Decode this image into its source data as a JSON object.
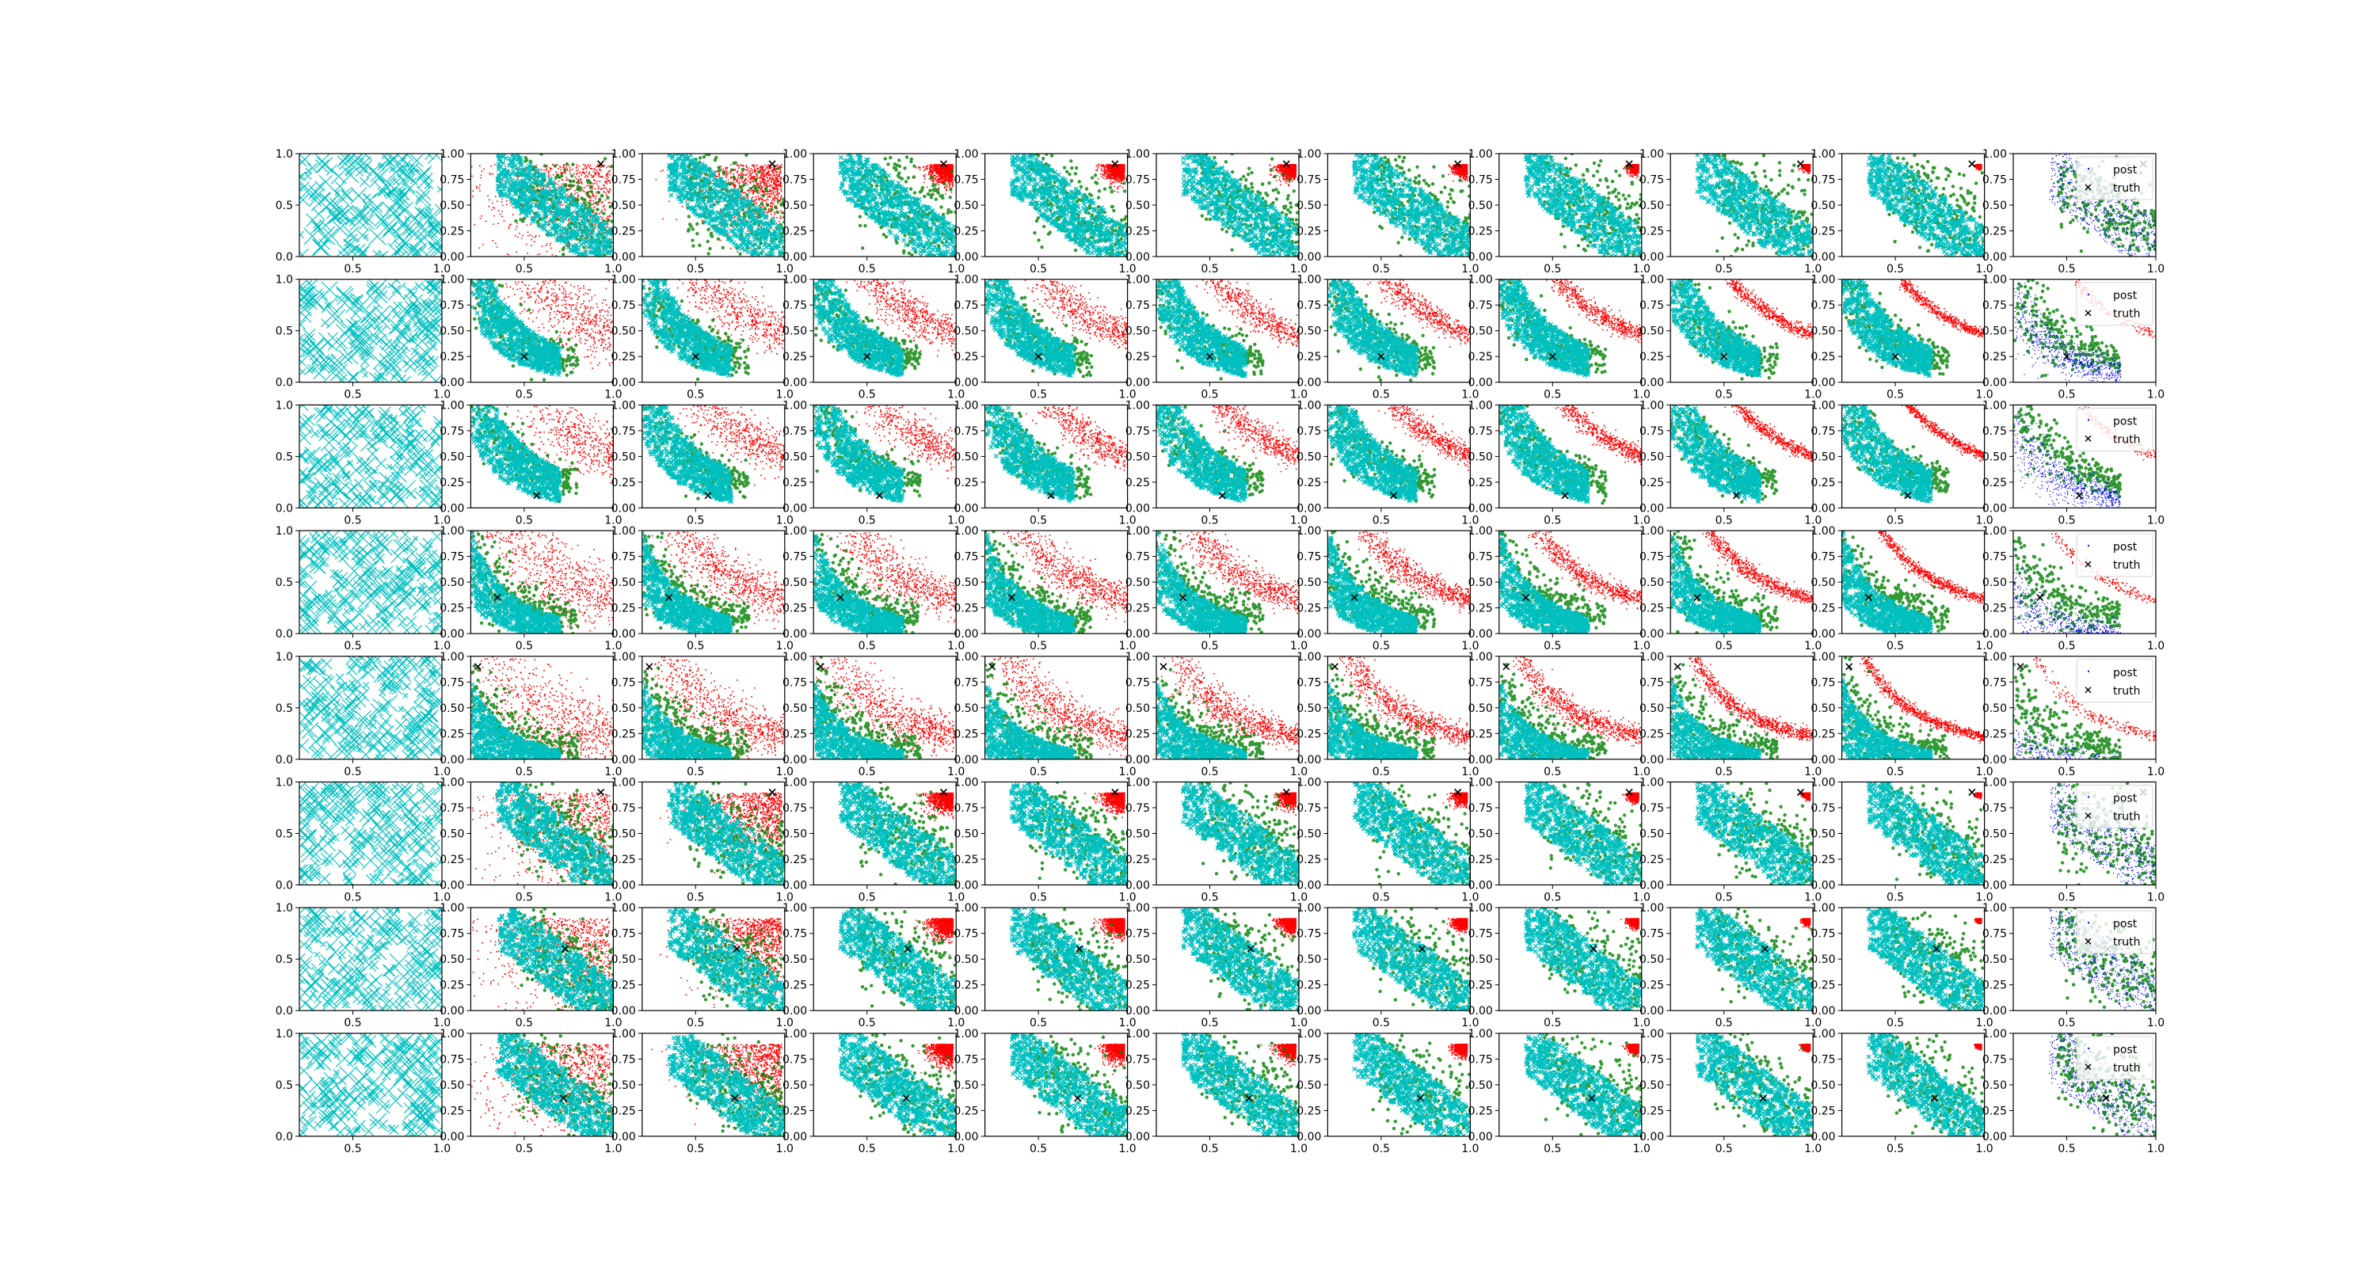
{
  "chart_data": {
    "type": "scatter",
    "layout": {
      "rows": 8,
      "cols": 11
    },
    "xlim": [
      0.2,
      1.0
    ],
    "ylim": [
      0.0,
      1.0
    ],
    "x_ticks": [
      "0.5",
      "1.0"
    ],
    "y_ticks_first_column": [
      "0.0",
      "0.5",
      "1.0"
    ],
    "y_ticks_other_columns": [
      "0.00",
      "0.25",
      "0.50",
      "0.75",
      "1.00"
    ],
    "legend": {
      "entries": [
        "post",
        "truth"
      ],
      "placement": "upper-right",
      "panel_column": 11
    },
    "colors": {
      "red": "#ff0000",
      "cyan": "#00bfbf",
      "green": "#008000",
      "blue": "#0000ff",
      "truth": "#000000"
    },
    "rows": [
      {
        "truth": [
          0.93,
          0.9
        ],
        "curve_c": 0.75,
        "posterior_band": [
          0.5,
          0.8
        ],
        "focused": false
      },
      {
        "truth": [
          0.5,
          0.25
        ],
        "curve_c": 0.28,
        "posterior_band": [
          0.18,
          0.38
        ],
        "focused": true
      },
      {
        "truth": [
          0.57,
          0.12
        ],
        "curve_c": 0.3,
        "posterior_band": [
          0.18,
          0.4
        ],
        "focused": true
      },
      {
        "truth": [
          0.35,
          0.35
        ],
        "curve_c": 0.22,
        "posterior_band": [
          0.1,
          0.25
        ],
        "focused": true
      },
      {
        "truth": [
          0.24,
          0.9
        ],
        "curve_c": 0.17,
        "posterior_band": [
          0.05,
          0.2
        ],
        "focused": true
      },
      {
        "truth": [
          0.93,
          0.9
        ],
        "curve_c": 0.75,
        "posterior_band": [
          0.5,
          0.8
        ],
        "focused": false
      },
      {
        "truth": [
          0.73,
          0.6
        ],
        "curve_c": 0.75,
        "posterior_band": [
          0.35,
          0.65
        ],
        "focused": false
      },
      {
        "truth": [
          0.72,
          0.37
        ],
        "curve_c": 0.75,
        "posterior_band": [
          0.35,
          0.65
        ],
        "focused": false
      }
    ]
  }
}
